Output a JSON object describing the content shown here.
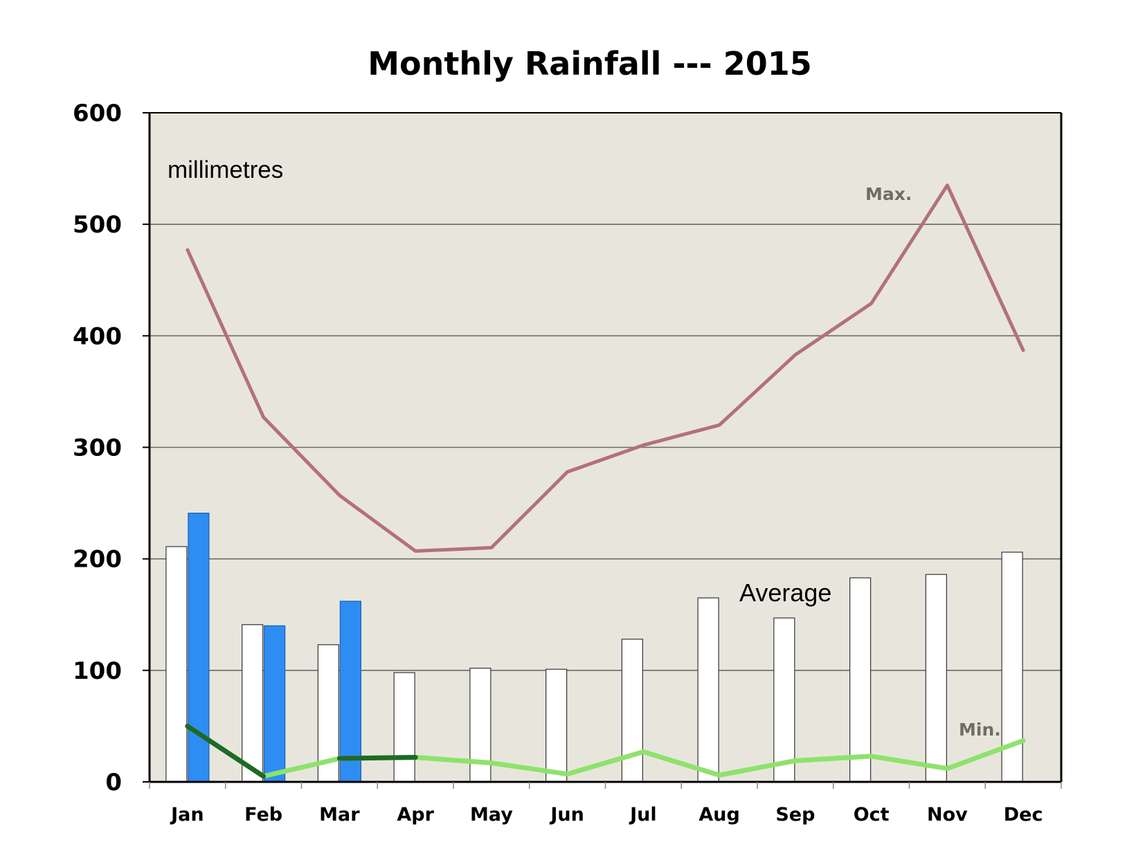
{
  "chart_data": {
    "type": "bar",
    "title": "Monthly Rainfall --- 2015",
    "unit_label": "millimetres",
    "categories": [
      "Jan",
      "Feb",
      "Mar",
      "Apr",
      "May",
      "Jun",
      "Jul",
      "Aug",
      "Sep",
      "Oct",
      "Nov",
      "Dec"
    ],
    "ylim": [
      0,
      600
    ],
    "yticks": [
      "0",
      "100",
      "200",
      "300",
      "400",
      "500",
      "600"
    ],
    "grid": true,
    "series": [
      {
        "name": "Average",
        "kind": "bar",
        "color": "#ffffff",
        "values": [
          211,
          141,
          123,
          98,
          102,
          101,
          128,
          165,
          147,
          183,
          186,
          206
        ]
      },
      {
        "kind": "bar",
        "color": "#2e8df2",
        "values": [
          241,
          140,
          162,
          null,
          null,
          null,
          null,
          null,
          null,
          null,
          null,
          null
        ]
      },
      {
        "name": "Max.",
        "kind": "line",
        "color": "#b3707f",
        "values": [
          477,
          327,
          257,
          207,
          210,
          278,
          302,
          320,
          383,
          429,
          535,
          387
        ]
      },
      {
        "name": "Min.",
        "kind": "line",
        "color": "#8ee26c",
        "values": [
          50,
          5,
          21,
          22,
          17,
          7,
          27,
          6,
          19,
          23,
          12,
          37
        ]
      }
    ],
    "colors": {
      "plot_background": "#e8e6dc",
      "gridline": "#6a6a66",
      "min_overlap": "#1d6a26"
    }
  }
}
